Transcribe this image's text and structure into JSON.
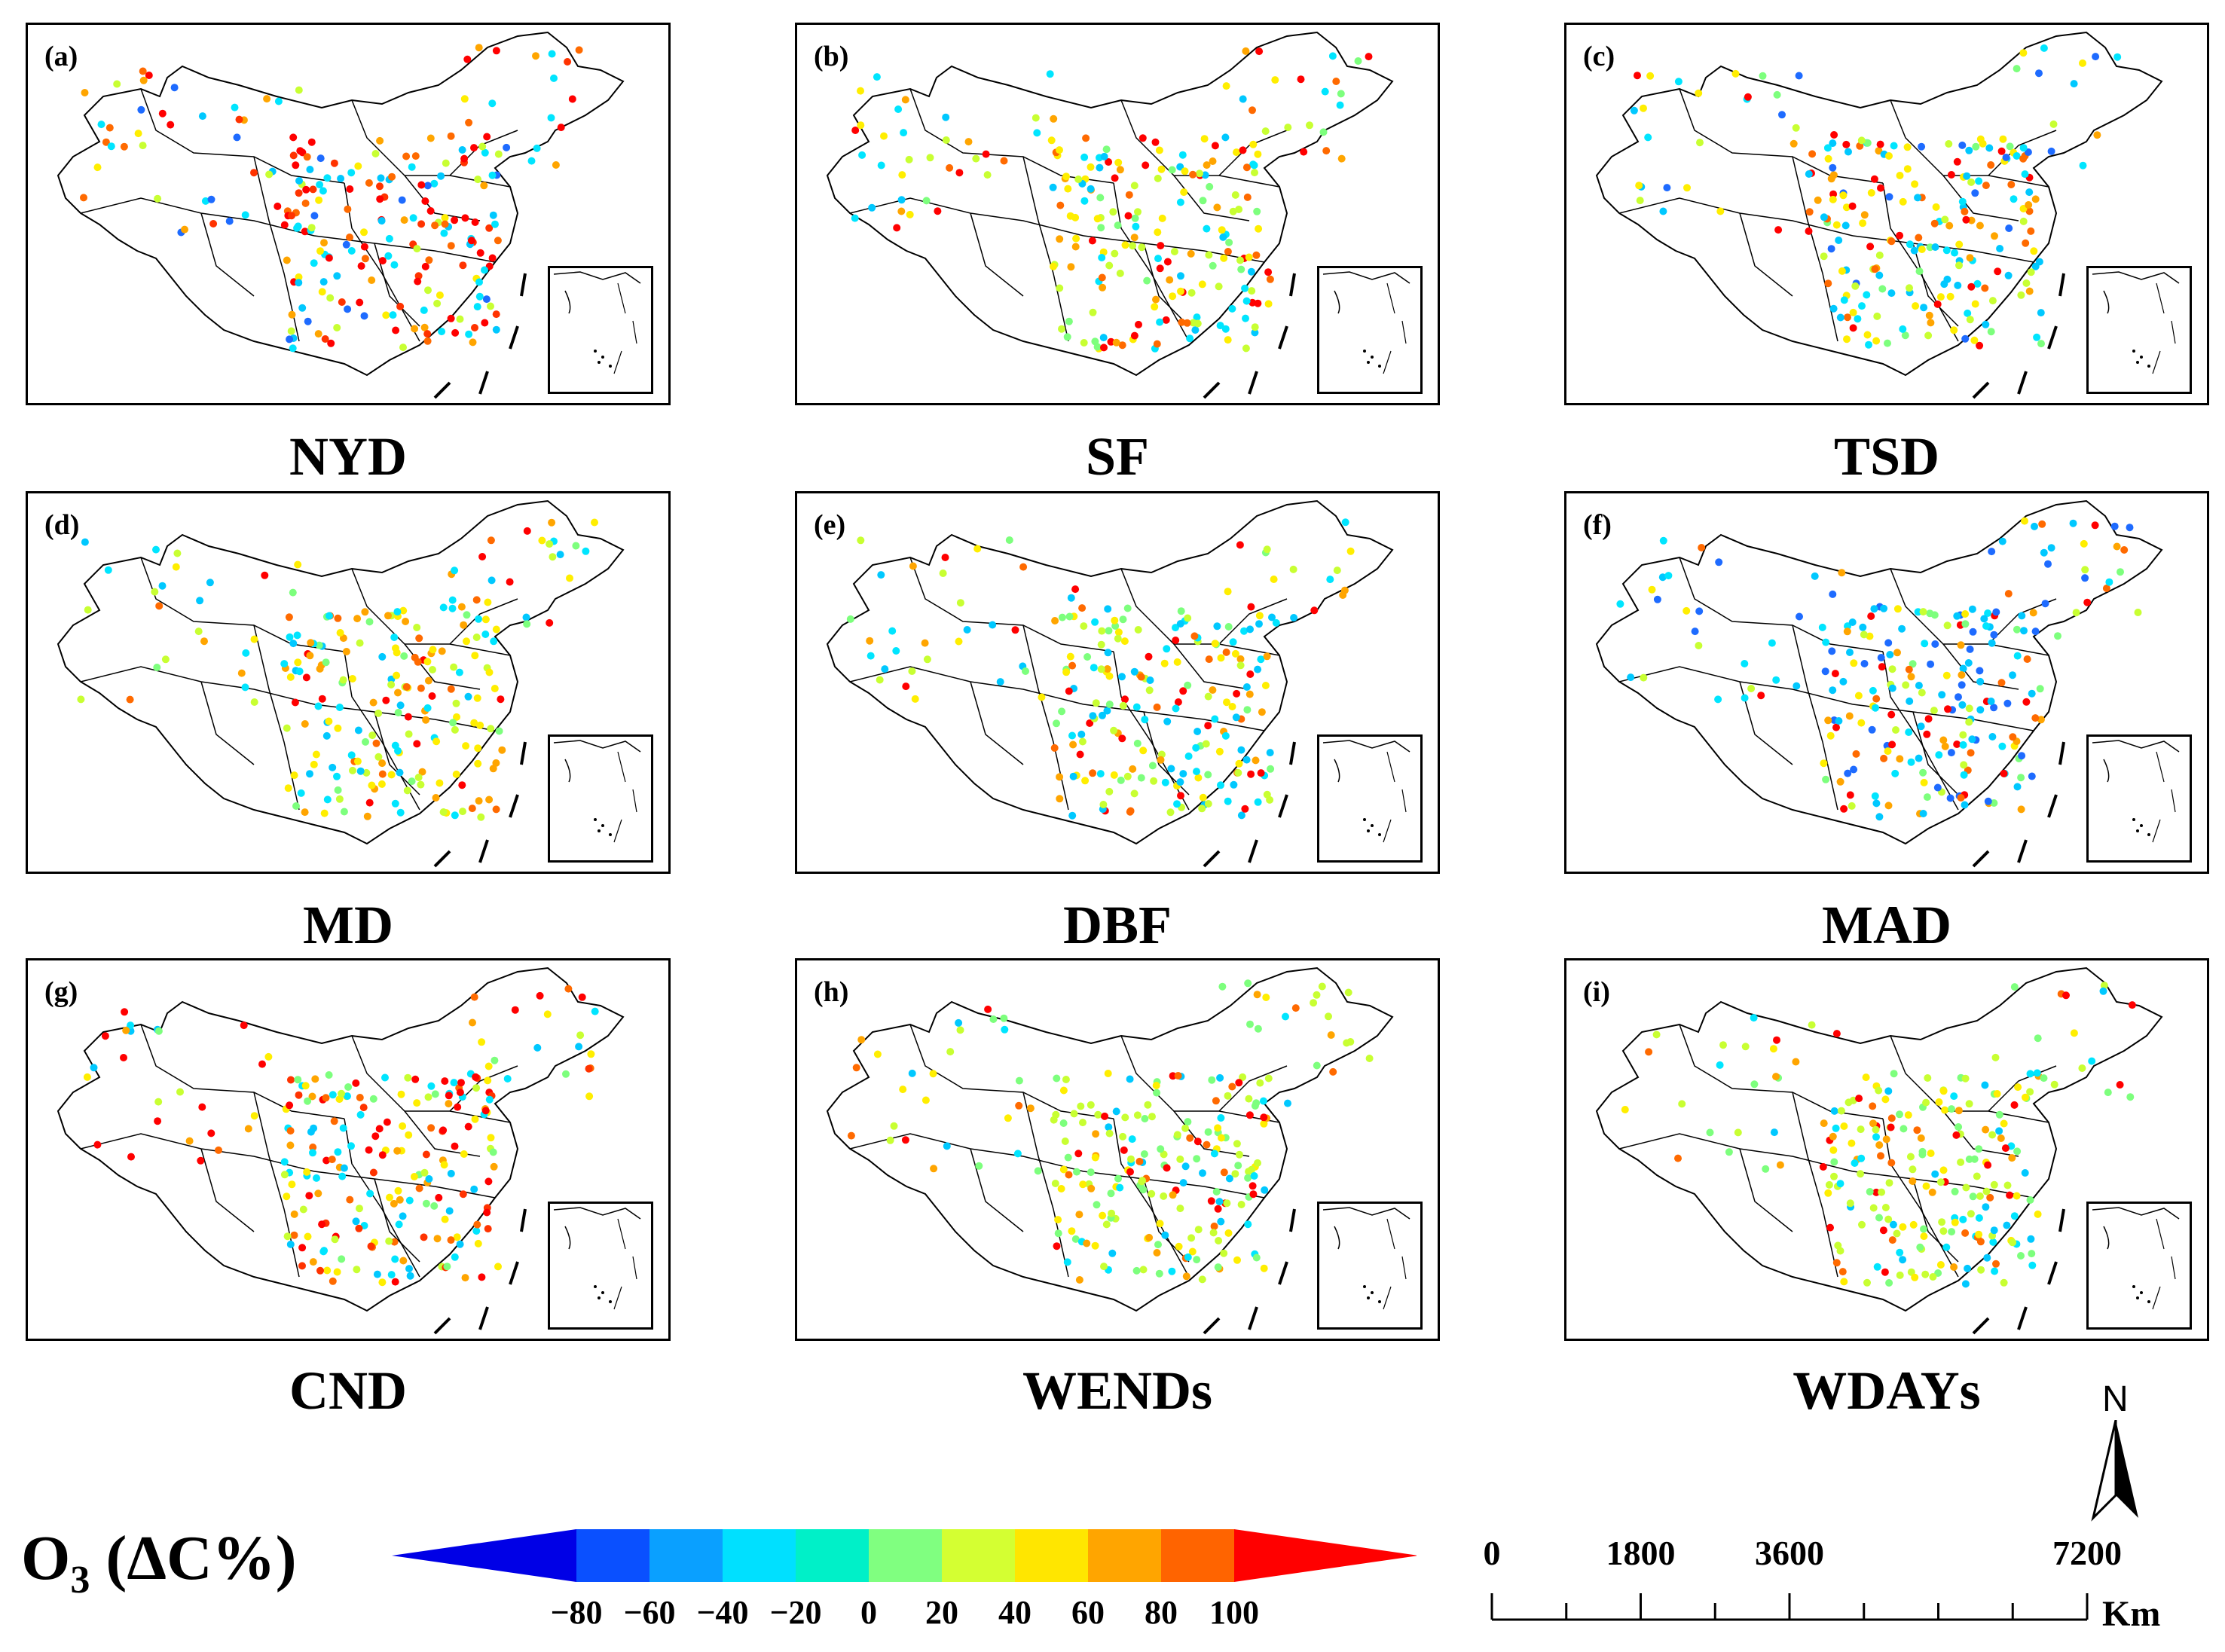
{
  "panels": [
    {
      "letter": "(a)",
      "title": "NYD",
      "palette": [
        "#ff0000",
        "#ff0000",
        "#ff6a00",
        "#ffa500",
        "#00e5ff",
        "#00c8ff",
        "#1e6bff",
        "#ffee00",
        "#c8ff32",
        "#ff0000",
        "#00e5ff",
        "#ff3300"
      ]
    },
    {
      "letter": "(b)",
      "title": "SF",
      "palette": [
        "#ffee00",
        "#c8ff32",
        "#ff0000",
        "#ffa500",
        "#00e5ff",
        "#7dff7d",
        "#00c8ff",
        "#ffee00",
        "#ff6a00",
        "#c8ff32",
        "#00e5ff",
        "#ff0000"
      ]
    },
    {
      "letter": "(c)",
      "title": "TSD",
      "palette": [
        "#00e5ff",
        "#00c8ff",
        "#ffee00",
        "#c8ff32",
        "#ff0000",
        "#ffa500",
        "#1e6bff",
        "#00e5ff",
        "#ff6a00",
        "#7dff7d",
        "#00c8ff",
        "#ffee00"
      ]
    },
    {
      "letter": "(d)",
      "title": "MD",
      "palette": [
        "#00e5ff",
        "#ffee00",
        "#c8ff32",
        "#ffa500",
        "#ff0000",
        "#00c8ff",
        "#7dff7d",
        "#ffee00",
        "#ff6a00",
        "#00e5ff",
        "#c8ff32",
        "#ffa500"
      ]
    },
    {
      "letter": "(e)",
      "title": "DBF",
      "palette": [
        "#00e5ff",
        "#ffee00",
        "#c8ff32",
        "#ffa500",
        "#00c8ff",
        "#ff6a00",
        "#7dff7d",
        "#00e5ff",
        "#ff0000",
        "#c8ff32",
        "#00c8ff",
        "#ffee00"
      ]
    },
    {
      "letter": "(f)",
      "title": "MAD",
      "palette": [
        "#00c8ff",
        "#00e5ff",
        "#1e6bff",
        "#ffee00",
        "#ff0000",
        "#c8ff32",
        "#00c8ff",
        "#ffa500",
        "#1e6bff",
        "#00e5ff",
        "#ff6a00",
        "#7dff7d"
      ]
    },
    {
      "letter": "(g)",
      "title": "CND",
      "palette": [
        "#ff0000",
        "#ffee00",
        "#ffa500",
        "#00e5ff",
        "#c8ff32",
        "#ff6a00",
        "#00c8ff",
        "#ff0000",
        "#7dff7d",
        "#ffee00",
        "#00e5ff",
        "#ff3300"
      ]
    },
    {
      "letter": "(h)",
      "title": "WENDs",
      "palette": [
        "#ffee00",
        "#c8ff32",
        "#7dff7d",
        "#00e5ff",
        "#ffa500",
        "#ff0000",
        "#c8ff32",
        "#ffee00",
        "#00c8ff",
        "#ff6a00",
        "#7dff7d",
        "#c8ff32"
      ]
    },
    {
      "letter": "(i)",
      "title": "WDAYs",
      "palette": [
        "#c8ff32",
        "#ffee00",
        "#7dff7d",
        "#00e5ff",
        "#ffa500",
        "#ff6a00",
        "#c8ff32",
        "#ff0000",
        "#00c8ff",
        "#ffee00",
        "#7dff7d",
        "#c8ff32"
      ]
    }
  ],
  "legend": {
    "title_main": "O",
    "title_sub": "3",
    "title_rest": " (ΔC%)",
    "ticks": [
      "−80",
      "−60",
      "−40",
      "−20",
      "0",
      "20",
      "40",
      "60",
      "80",
      "100"
    ],
    "colors": [
      "#0000e6",
      "#0a50ff",
      "#0aa0ff",
      "#00e0ff",
      "#00f0c8",
      "#80ff80",
      "#d4ff32",
      "#ffe600",
      "#ffa500",
      "#ff6400",
      "#ff0000"
    ]
  },
  "scale_bar": {
    "labels": [
      "0",
      "1800",
      "3600",
      "7200"
    ],
    "unit": "Km"
  },
  "north_label": "N"
}
